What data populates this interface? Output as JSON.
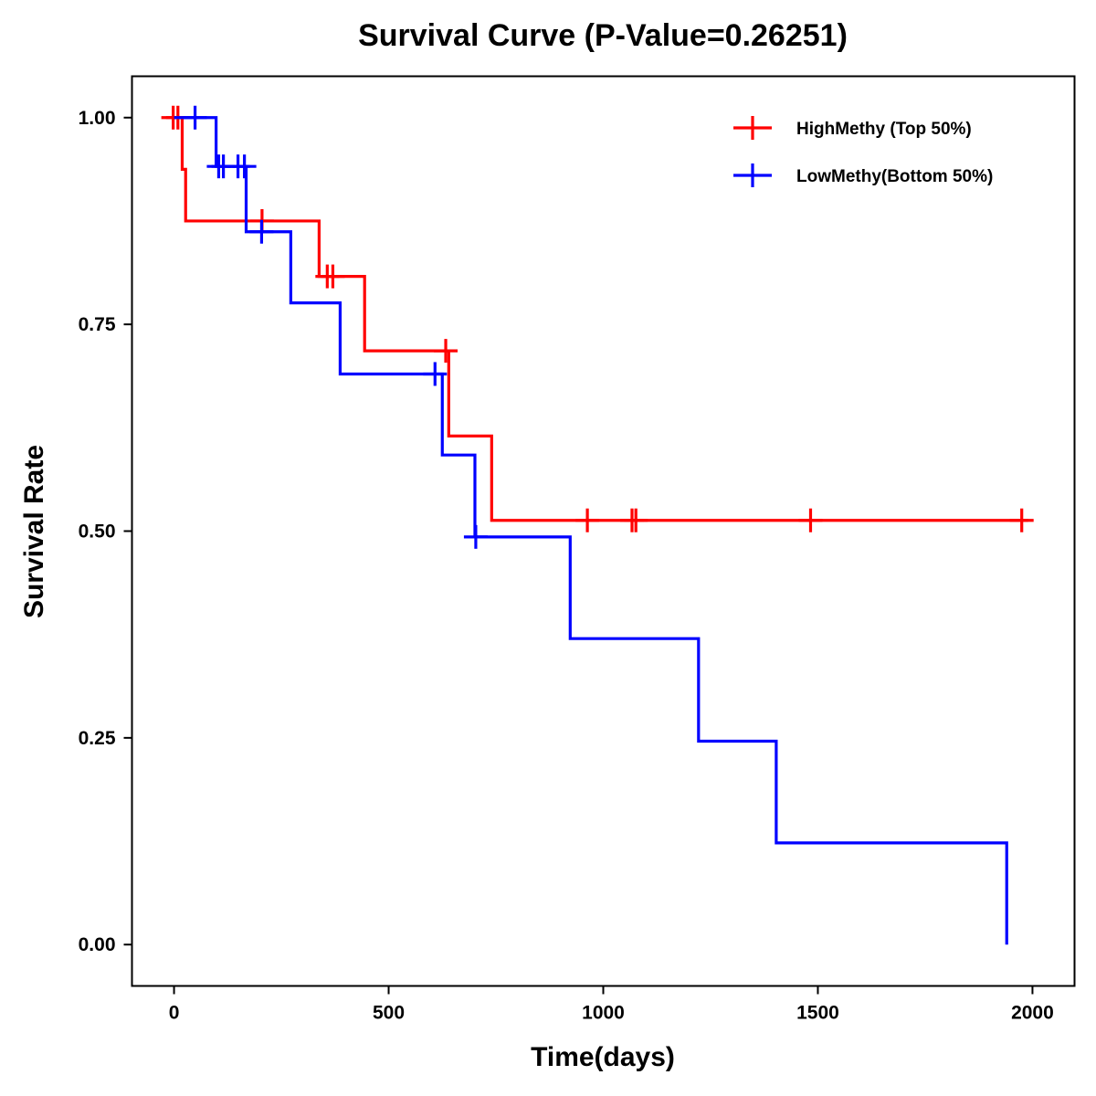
{
  "chart_data": {
    "type": "line",
    "subtype": "kaplan-meier-step",
    "title": "Survival Curve (P-Value=0.26251)",
    "xlabel": "Time(days)",
    "ylabel": "Survival Rate",
    "xlim": [
      -98,
      2098
    ],
    "ylim": [
      -0.05,
      1.05
    ],
    "xticks": [
      0,
      500,
      1000,
      1500,
      2000
    ],
    "xtick_labels": [
      "0",
      "500",
      "1000",
      "1500",
      "2000"
    ],
    "yticks": [
      0,
      0.25,
      0.5,
      0.75,
      1.0
    ],
    "ytick_labels": [
      "0.00",
      "0.25",
      "0.50",
      "0.75",
      "1.00"
    ],
    "grid": false,
    "legend_position": "top-right",
    "series": [
      {
        "name": "HighMethy (Top 50%)",
        "color": "#ff0000",
        "steps": [
          {
            "t": 0,
            "s": 1.0
          },
          {
            "t": 19,
            "s": 0.9375
          },
          {
            "t": 27,
            "s": 0.875
          },
          {
            "t": 338,
            "s": 0.808
          },
          {
            "t": 444,
            "s": 0.718
          },
          {
            "t": 640,
            "s": 0.615
          },
          {
            "t": 740,
            "s": 0.513
          }
        ],
        "end_time": 1990,
        "censored": [
          {
            "t": -2,
            "s": 1.0
          },
          {
            "t": 9,
            "s": 1.0
          },
          {
            "t": 205,
            "s": 0.875
          },
          {
            "t": 357,
            "s": 0.808
          },
          {
            "t": 370,
            "s": 0.808
          },
          {
            "t": 633,
            "s": 0.718
          },
          {
            "t": 963,
            "s": 0.513
          },
          {
            "t": 1067,
            "s": 0.513
          },
          {
            "t": 1076,
            "s": 0.513
          },
          {
            "t": 1483,
            "s": 0.513
          },
          {
            "t": 1975,
            "s": 0.513
          }
        ]
      },
      {
        "name": "LowMethy(Bottom 50%)",
        "color": "#0000ff",
        "steps": [
          {
            "t": 0,
            "s": 1.0
          },
          {
            "t": 98,
            "s": 0.941
          },
          {
            "t": 168,
            "s": 0.862
          },
          {
            "t": 272,
            "s": 0.776
          },
          {
            "t": 387,
            "s": 0.69
          },
          {
            "t": 625,
            "s": 0.592
          },
          {
            "t": 701,
            "s": 0.493
          },
          {
            "t": 923,
            "s": 0.37
          },
          {
            "t": 1222,
            "s": 0.246
          },
          {
            "t": 1403,
            "s": 0.123
          },
          {
            "t": 1940,
            "s": 0.0
          }
        ],
        "end_time": 1940,
        "censored": [
          {
            "t": 49,
            "s": 1.0
          },
          {
            "t": 104,
            "s": 0.941
          },
          {
            "t": 115,
            "s": 0.941
          },
          {
            "t": 149,
            "s": 0.941
          },
          {
            "t": 164,
            "s": 0.941
          },
          {
            "t": 204,
            "s": 0.862
          },
          {
            "t": 608,
            "s": 0.69
          },
          {
            "t": 703,
            "s": 0.493
          }
        ]
      }
    ]
  }
}
